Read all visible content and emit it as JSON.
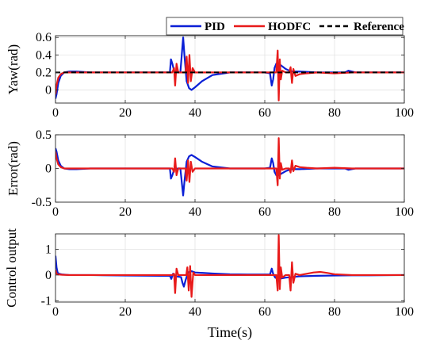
{
  "chart_data": [
    {
      "type": "line",
      "ylabel": "Yaw(rad)",
      "xlim": [
        0,
        100
      ],
      "ylim": [
        -0.15,
        0.62
      ],
      "xticks": [
        0,
        20,
        40,
        60,
        80,
        100
      ],
      "yticks": [
        0,
        0.2,
        0.4,
        0.6
      ],
      "ytick_labels": [
        "0",
        "0.2",
        "0.4",
        "0.6"
      ],
      "grid": true,
      "legend": {
        "placement": "top-right",
        "entries": [
          "PID",
          "HODFC",
          "Reference"
        ]
      },
      "series": [
        {
          "name": "PID",
          "color": "#0a1fd6",
          "style": "solid",
          "x": [
            0,
            0.3,
            0.8,
            1.5,
            2.5,
            4,
            6,
            10,
            20,
            30,
            32.8,
            33.1,
            33.5,
            34,
            35,
            35.8,
            36.3,
            36.6,
            37,
            37.6,
            38.3,
            39,
            40,
            42,
            45,
            50,
            55,
            60,
            61.5,
            62,
            62.4,
            62.8,
            63.3,
            64,
            65,
            66,
            67,
            68,
            70,
            75,
            80,
            83,
            84,
            85,
            86,
            90,
            100
          ],
          "y": [
            -0.1,
            -0.05,
            0.08,
            0.16,
            0.2,
            0.21,
            0.21,
            0.2,
            0.2,
            0.2,
            0.2,
            0.35,
            0.3,
            0.22,
            0.2,
            0.2,
            0.45,
            0.6,
            0.38,
            0.1,
            0.02,
            0.0,
            0.03,
            0.1,
            0.17,
            0.2,
            0.2,
            0.2,
            0.19,
            0.05,
            0.12,
            0.25,
            0.3,
            0.3,
            0.27,
            0.24,
            0.22,
            0.21,
            0.21,
            0.2,
            0.2,
            0.2,
            0.22,
            0.21,
            0.2,
            0.2,
            0.2
          ]
        },
        {
          "name": "HODFC",
          "color": "#e81a1a",
          "style": "solid",
          "x": [
            0,
            0.3,
            0.8,
            1.5,
            2.5,
            4,
            6,
            10,
            20,
            30,
            33.5,
            34,
            34.3,
            34.7,
            35.2,
            36,
            37.3,
            37.6,
            38,
            38.4,
            38.8,
            39.3,
            40,
            42,
            50,
            60,
            63.3,
            63.7,
            64,
            64.3,
            64.6,
            65,
            66,
            67,
            67.4,
            67.8,
            68.2,
            68.8,
            70,
            72,
            75,
            80,
            85,
            90,
            100
          ],
          "y": [
            -0.05,
            0.05,
            0.14,
            0.18,
            0.2,
            0.2,
            0.2,
            0.2,
            0.2,
            0.2,
            0.2,
            0.25,
            0.05,
            0.3,
            0.2,
            0.2,
            0.2,
            0.38,
            0.08,
            0.4,
            0.1,
            0.25,
            0.2,
            0.2,
            0.2,
            0.2,
            0.2,
            0.45,
            -0.12,
            0.35,
            0.12,
            0.22,
            0.2,
            0.2,
            0.26,
            0.08,
            0.24,
            0.16,
            0.18,
            0.19,
            0.2,
            0.19,
            0.2,
            0.2,
            0.2
          ]
        },
        {
          "name": "Reference",
          "color": "#000000",
          "style": "dashed",
          "x": [
            0,
            100
          ],
          "y": [
            0.2,
            0.2
          ]
        }
      ]
    },
    {
      "type": "line",
      "ylabel": "Error(rad)",
      "xlim": [
        0,
        100
      ],
      "ylim": [
        -0.5,
        0.5
      ],
      "xticks": [
        0,
        20,
        40,
        60,
        80,
        100
      ],
      "yticks": [
        -0.5,
        0,
        0.5
      ],
      "ytick_labels": [
        "-0.5",
        "0",
        "0.5"
      ],
      "grid": true,
      "series": [
        {
          "name": "PID",
          "color": "#0a1fd6",
          "style": "solid",
          "x": [
            0,
            0.3,
            0.8,
            1.5,
            2.5,
            4,
            6,
            10,
            20,
            30,
            32.8,
            33.1,
            33.5,
            34,
            35,
            35.8,
            36.3,
            36.6,
            37,
            37.6,
            38.3,
            39,
            40,
            42,
            45,
            50,
            55,
            60,
            61.5,
            62,
            62.4,
            62.8,
            63.3,
            64,
            65,
            66,
            67,
            68,
            70,
            75,
            80,
            83,
            84,
            85,
            86,
            90,
            100
          ],
          "y": [
            0.3,
            0.25,
            0.12,
            0.04,
            0.0,
            -0.01,
            -0.01,
            0.0,
            0.0,
            0.0,
            0.0,
            -0.15,
            -0.1,
            -0.02,
            0.0,
            0.0,
            -0.25,
            -0.4,
            -0.18,
            0.1,
            0.18,
            0.2,
            0.17,
            0.1,
            0.03,
            0.0,
            0.0,
            0.0,
            0.01,
            0.15,
            0.08,
            -0.05,
            -0.1,
            -0.1,
            -0.07,
            -0.04,
            -0.02,
            -0.01,
            -0.01,
            0.0,
            0.0,
            0.0,
            -0.02,
            -0.01,
            0.0,
            0.0,
            0.0
          ]
        },
        {
          "name": "HODFC",
          "color": "#e81a1a",
          "style": "solid",
          "x": [
            0,
            0.3,
            0.8,
            1.5,
            2.5,
            4,
            6,
            10,
            20,
            30,
            33.5,
            34,
            34.3,
            34.7,
            35.2,
            36,
            37.3,
            37.6,
            38,
            38.4,
            38.8,
            39.3,
            40,
            42,
            50,
            60,
            63.3,
            63.7,
            64,
            64.3,
            64.6,
            65,
            66,
            67,
            67.4,
            67.8,
            68.2,
            68.8,
            70,
            72,
            75,
            80,
            85,
            90,
            100
          ],
          "y": [
            0.25,
            0.15,
            0.06,
            0.02,
            0.0,
            0.0,
            0.0,
            0.0,
            0.0,
            0.0,
            0.0,
            -0.05,
            0.15,
            -0.1,
            0.0,
            0.0,
            0.0,
            -0.18,
            0.12,
            -0.2,
            0.1,
            -0.05,
            0.0,
            0.0,
            0.0,
            0.0,
            0.0,
            -0.25,
            0.45,
            -0.15,
            0.08,
            -0.02,
            0.0,
            0.0,
            -0.06,
            0.12,
            -0.04,
            0.04,
            0.02,
            0.01,
            0.0,
            0.01,
            0.0,
            0.0,
            0.0
          ]
        }
      ]
    },
    {
      "type": "line",
      "ylabel": "Control output",
      "xlabel": "Time(s)",
      "xlim": [
        0,
        100
      ],
      "ylim": [
        -1.05,
        1.6
      ],
      "xticks": [
        0,
        20,
        40,
        60,
        80,
        100
      ],
      "yticks": [
        -1,
        0,
        1
      ],
      "ytick_labels": [
        "-1",
        "0",
        "1"
      ],
      "grid": true,
      "series": [
        {
          "name": "PID",
          "color": "#0a1fd6",
          "style": "solid",
          "x": [
            0,
            0.3,
            0.6,
            1,
            2,
            4,
            10,
            20,
            30,
            32.8,
            33.2,
            33.7,
            34.5,
            36,
            36.4,
            36.8,
            37.3,
            38,
            39,
            40,
            45,
            50,
            55,
            60,
            61.5,
            62,
            62.4,
            63,
            64,
            66,
            70,
            75,
            80,
            85,
            90,
            100
          ],
          "y": [
            0.75,
            0.3,
            0.1,
            0.05,
            0.02,
            0.0,
            0.0,
            -0.02,
            -0.03,
            -0.03,
            -0.15,
            0.05,
            -0.05,
            -0.08,
            -0.3,
            -0.45,
            -0.2,
            0.1,
            0.15,
            0.1,
            0.06,
            0.03,
            0.02,
            0.02,
            0.02,
            0.25,
            0.05,
            -0.1,
            -0.15,
            -0.1,
            -0.05,
            -0.03,
            -0.02,
            -0.01,
            -0.01,
            0.0
          ]
        },
        {
          "name": "HODFC",
          "color": "#e81a1a",
          "style": "solid",
          "x": [
            0,
            0.3,
            0.6,
            1,
            2,
            4,
            10,
            20,
            30,
            33.5,
            34,
            34.3,
            34.7,
            35.2,
            36,
            37.5,
            37.8,
            38.2,
            38.6,
            39,
            39.5,
            40,
            45,
            50,
            55,
            60,
            63.3,
            63.7,
            64,
            64.3,
            64.6,
            65,
            66,
            67,
            67.4,
            67.8,
            68.2,
            68.8,
            70,
            72,
            74,
            76,
            78,
            80,
            85,
            90,
            100
          ],
          "y": [
            0.2,
            0.05,
            0.03,
            0.02,
            0.01,
            0.0,
            0.0,
            0.0,
            0.0,
            0.0,
            0.05,
            -0.7,
            0.25,
            0.0,
            0.0,
            0.0,
            0.3,
            -0.6,
            0.35,
            -0.85,
            0.1,
            0.0,
            0.0,
            0.0,
            0.0,
            0.0,
            0.0,
            -0.6,
            1.55,
            -0.55,
            0.3,
            -0.1,
            0.0,
            0.0,
            -0.6,
            0.5,
            -0.3,
            0.05,
            0.0,
            0.05,
            0.1,
            0.12,
            0.08,
            0.03,
            0.0,
            0.0,
            0.0
          ]
        }
      ]
    }
  ]
}
